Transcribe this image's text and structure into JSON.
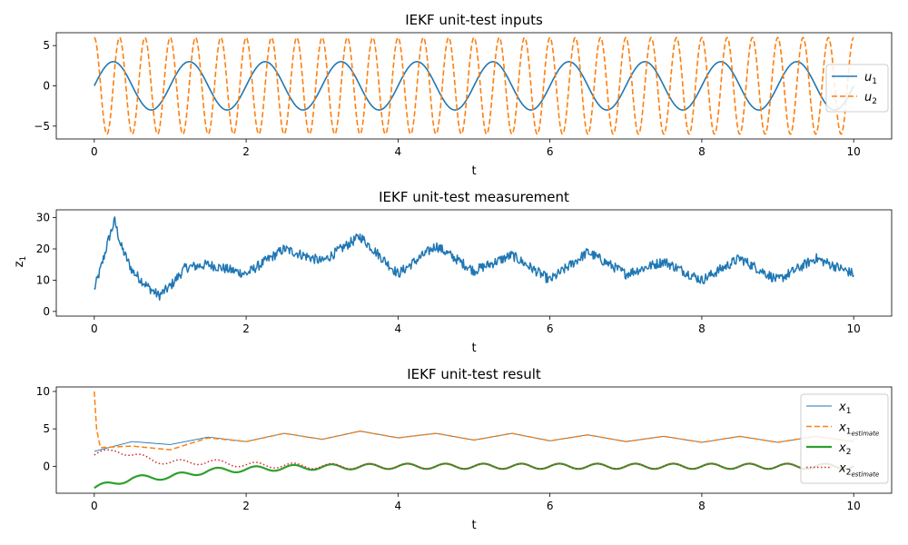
{
  "chart_data": [
    {
      "type": "line",
      "title": "IEKF unit-test inputs",
      "xlabel": "t",
      "ylabel": "",
      "xlim": [
        -0.5,
        10.5
      ],
      "ylim": [
        -6.6,
        6.6
      ],
      "xticks": [
        0,
        2,
        4,
        6,
        8,
        10
      ],
      "yticks": [
        -5,
        0,
        5
      ],
      "legend": "right",
      "grid": false,
      "series": [
        {
          "name": "u",
          "sub": "1",
          "color": "#1f77b4",
          "style": "solid",
          "width": 1.6,
          "formula": "3*sin(2*pi*t)",
          "amplitude": 3,
          "frequency_hz": 1
        },
        {
          "name": "u",
          "sub": "2",
          "color": "#ff7f0e",
          "style": "dashed",
          "width": 1.6,
          "formula": "6*cos(6*pi*t)",
          "amplitude": 6,
          "frequency_hz": 3
        }
      ]
    },
    {
      "type": "line",
      "title": "IEKF unit-test measurement",
      "xlabel": "t",
      "ylabel": "z",
      "ylabel_sub": "1",
      "xlim": [
        -0.5,
        10.5
      ],
      "ylim": [
        -1.5,
        32.5
      ],
      "xticks": [
        0,
        2,
        4,
        6,
        8,
        10
      ],
      "yticks": [
        0,
        10,
        20,
        30
      ],
      "grid": false,
      "series": [
        {
          "name": "z1",
          "color": "#1f77b4",
          "style": "solid",
          "width": 1.5,
          "x_envelope": [
            0,
            0.1,
            0.2,
            0.27,
            0.35,
            0.5,
            0.7,
            0.85,
            1.0,
            1.2,
            1.5,
            2.0,
            2.5,
            3.0,
            3.5,
            4.0,
            4.5,
            5.0,
            5.5,
            6.0,
            6.5,
            7.0,
            7.5,
            8.0,
            8.5,
            9.0,
            9.5,
            10.0
          ],
          "y_envelope": [
            7,
            15,
            24,
            29,
            21,
            13,
            8,
            5,
            8,
            14,
            15,
            12,
            20,
            16,
            24,
            12,
            21,
            13,
            18,
            10,
            19,
            12,
            16,
            10,
            17,
            10,
            17,
            12
          ],
          "noise_amplitude": 1.6
        }
      ]
    },
    {
      "type": "line",
      "title": "IEKF unit-test result",
      "xlabel": "t",
      "ylabel": "",
      "xlim": [
        -0.5,
        10.5
      ],
      "ylim": [
        -3.6,
        10.6
      ],
      "xticks": [
        0,
        2,
        4,
        6,
        8,
        10
      ],
      "yticks": [
        0,
        5,
        10
      ],
      "legend": "right",
      "grid": false,
      "series": [
        {
          "name": "x",
          "sub": "1",
          "color": "#1f77b4",
          "style": "solid",
          "width": 0.9,
          "x_envelope": [
            0,
            0.5,
            1.0,
            1.5,
            2.0,
            2.5,
            3.0,
            3.5,
            4.0,
            4.5,
            5.0,
            5.5,
            6.0,
            6.5,
            7.0,
            7.5,
            8.0,
            8.5,
            9.0,
            9.5,
            10.0
          ],
          "y_envelope": [
            2.0,
            3.3,
            2.9,
            3.9,
            3.3,
            4.4,
            3.6,
            4.7,
            3.8,
            4.4,
            3.5,
            4.4,
            3.4,
            4.2,
            3.3,
            4.0,
            3.2,
            4.0,
            3.2,
            4.0,
            3.3
          ]
        },
        {
          "name": "x",
          "sub": "1estimate",
          "color": "#ff7f0e",
          "style": "dashed",
          "width": 1.5,
          "x_envelope": [
            0,
            0.03,
            0.08,
            0.5,
            1.0,
            1.5,
            2.0,
            2.5,
            3.0,
            3.5,
            4.0,
            4.5,
            5.0,
            5.5,
            6.0,
            6.5,
            7.0,
            7.5,
            8.0,
            8.5,
            9.0,
            9.5,
            10.0
          ],
          "y_envelope": [
            10.0,
            5.0,
            2.5,
            2.7,
            2.2,
            3.8,
            3.3,
            4.4,
            3.6,
            4.7,
            3.8,
            4.4,
            3.5,
            4.4,
            3.4,
            4.2,
            3.3,
            4.0,
            3.2,
            4.0,
            3.2,
            4.0,
            3.3
          ]
        },
        {
          "name": "x",
          "sub": "2",
          "color": "#2ca02c",
          "style": "solid",
          "width": 2.2,
          "x_envelope": [
            0,
            0.5,
            1.0,
            1.5,
            2.0,
            2.5,
            3.0,
            4.0,
            5.0,
            6.0,
            7.0,
            8.0,
            9.0,
            10.0
          ],
          "y_envelope": [
            -2.9,
            -1.6,
            -1.4,
            -0.6,
            -0.4,
            -0.2,
            -0.1,
            0.0,
            0.0,
            0.0,
            0.0,
            0.0,
            0.0,
            0.0
          ],
          "oscillation_amplitude": 0.35,
          "oscillation_frequency_hz": 2
        },
        {
          "name": "x",
          "sub": "2estimate",
          "color": "#d62728",
          "style": "dotted",
          "width": 1.5,
          "x_envelope": [
            0,
            0.3,
            0.5,
            0.8,
            1.0,
            1.5,
            2.0,
            2.5,
            3.0,
            4.0,
            5.0,
            6.0,
            7.0,
            8.0,
            9.0,
            10.0
          ],
          "y_envelope": [
            1.5,
            2.2,
            1.5,
            0.8,
            0.5,
            0.6,
            0.2,
            0.1,
            0.0,
            0.0,
            0.0,
            0.0,
            0.0,
            0.0,
            0.0,
            0.0
          ],
          "oscillation_amplitude": 0.35,
          "oscillation_frequency_hz": 2
        }
      ]
    }
  ]
}
